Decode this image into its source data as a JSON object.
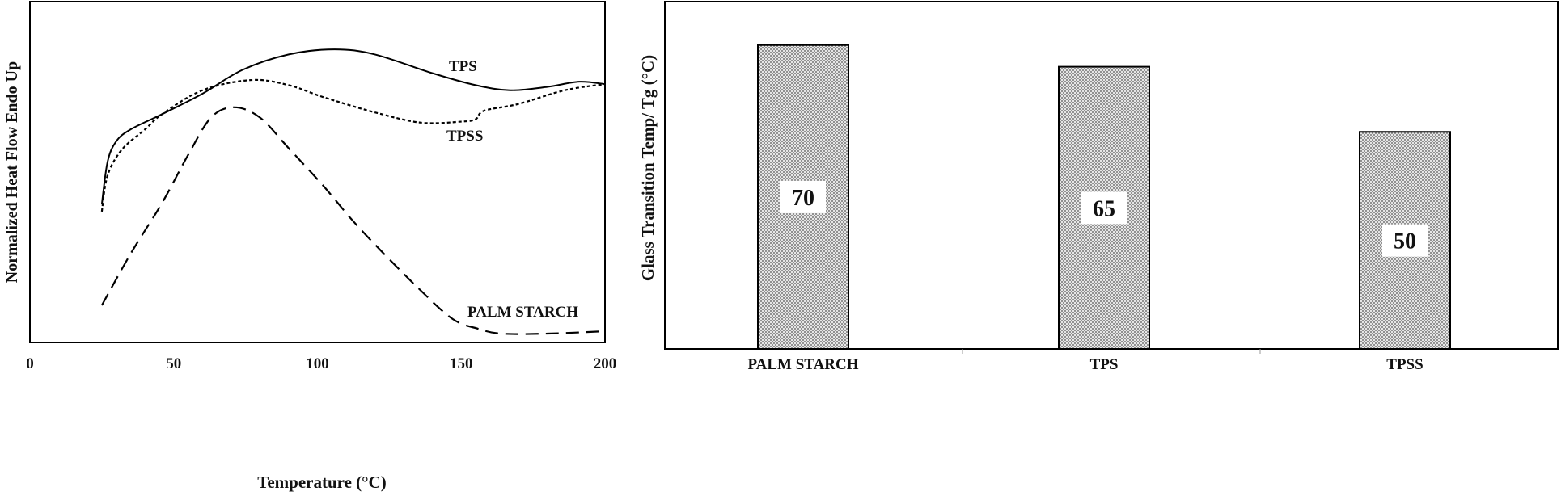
{
  "chart_data": [
    {
      "type": "line",
      "title": "",
      "xlabel": "Temperature (°C)",
      "ylabel": "Normalized Heat Flow Endo Up",
      "xlim": [
        0,
        200
      ],
      "ylim": [
        0,
        1
      ],
      "xticks": [
        "0",
        "50",
        "100",
        "150",
        "200"
      ],
      "grid": false,
      "series": [
        {
          "name": "TPS",
          "style": "solid",
          "x": [
            25,
            27,
            30,
            35,
            46,
            60,
            74,
            90,
            106,
            120,
            140,
            155,
            167,
            180,
            191,
            200
          ],
          "y": [
            0.405,
            0.53,
            0.59,
            0.625,
            0.67,
            0.73,
            0.8,
            0.845,
            0.86,
            0.845,
            0.79,
            0.755,
            0.74,
            0.75,
            0.765,
            0.758
          ]
        },
        {
          "name": "TPSS",
          "style": "dotted",
          "x": [
            25,
            27,
            32,
            40,
            46,
            60,
            77,
            90,
            102,
            120,
            136,
            150,
            155,
            158,
            170,
            186,
            200
          ],
          "y": [
            0.384,
            0.49,
            0.566,
            0.625,
            0.67,
            0.74,
            0.77,
            0.755,
            0.72,
            0.675,
            0.645,
            0.648,
            0.655,
            0.68,
            0.7,
            0.74,
            0.758
          ]
        },
        {
          "name": "PALM STARCH",
          "style": "dashed",
          "x": [
            25,
            35,
            46,
            55,
            63,
            71,
            80,
            90,
            102,
            112,
            122,
            135,
            147,
            156,
            164,
            180,
            200
          ],
          "y": [
            0.109,
            0.26,
            0.41,
            0.55,
            0.66,
            0.69,
            0.66,
            0.57,
            0.46,
            0.36,
            0.27,
            0.16,
            0.069,
            0.04,
            0.026,
            0.026,
            0.033
          ]
        }
      ],
      "annotations": [
        "TPS",
        "TPSS",
        "PALM STARCH"
      ]
    },
    {
      "type": "bar",
      "title": "",
      "xlabel": "",
      "ylabel": "Glass Transition Temp/ Tg (°C)",
      "categories": [
        "PALM STARCH",
        "TPS",
        "TPSS"
      ],
      "values": [
        70,
        65,
        50
      ],
      "data_labels": [
        "70",
        "65",
        "50"
      ],
      "ylim": [
        0,
        80
      ],
      "grid": false,
      "fill": "dotted-gray"
    }
  ]
}
